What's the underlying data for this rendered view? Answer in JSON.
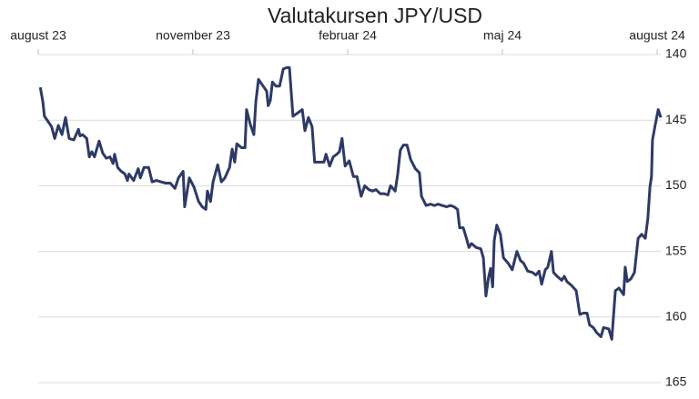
{
  "chart_data": {
    "type": "line",
    "title": "Valutakursen JPY/USD",
    "x": [
      0.04,
      0.09,
      0.12,
      0.19,
      0.26,
      0.32,
      0.39,
      0.46,
      0.53,
      0.6,
      0.69,
      0.78,
      0.81,
      0.86,
      0.94,
      0.99,
      1.04,
      1.09,
      1.18,
      1.25,
      1.32,
      1.39,
      1.45,
      1.48,
      1.54,
      1.61,
      1.68,
      1.73,
      1.76,
      1.85,
      1.91,
      1.94,
      1.98,
      2.05,
      2.14,
      2.21,
      2.29,
      2.38,
      2.47,
      2.56,
      2.65,
      2.72,
      2.81,
      2.84,
      2.93,
      3.02,
      3.11,
      3.18,
      3.25,
      3.28,
      3.34,
      3.39,
      3.48,
      3.55,
      3.62,
      3.71,
      3.76,
      3.81,
      3.85,
      3.94,
      4.01,
      4.04,
      4.11,
      4.18,
      4.22,
      4.27,
      4.36,
      4.43,
      4.46,
      4.5,
      4.54,
      4.61,
      4.68,
      4.75,
      4.82,
      4.87,
      4.94,
      5.05,
      5.12,
      5.17,
      5.24,
      5.31,
      5.36,
      5.45,
      5.54,
      5.58,
      5.65,
      5.72,
      5.79,
      5.84,
      5.89,
      5.95,
      6.03,
      6.11,
      6.18,
      6.26,
      6.33,
      6.41,
      6.48,
      6.55,
      6.63,
      6.71,
      6.78,
      6.83,
      6.92,
      6.97,
      7.02,
      7.08,
      7.15,
      7.22,
      7.31,
      7.39,
      7.43,
      7.52,
      7.61,
      7.68,
      7.75,
      7.83,
      7.92,
      7.99,
      8.06,
      8.13,
      8.17,
      8.24,
      8.31,
      8.35,
      8.4,
      8.49,
      8.58,
      8.63,
      8.68,
      8.73,
      8.77,
      8.81,
      8.84,
      8.89,
      8.96,
      9.02,
      9.11,
      9.19,
      9.28,
      9.35,
      9.41,
      9.49,
      9.58,
      9.65,
      9.71,
      9.76,
      9.83,
      9.88,
      9.95,
      9.99,
      10.06,
      10.15,
      10.2,
      10.25,
      10.34,
      10.43,
      10.5,
      10.57,
      10.64,
      10.69,
      10.76,
      10.83,
      10.91,
      10.96,
      11.06,
      11.12,
      11.19,
      11.26,
      11.35,
      11.38,
      11.42,
      11.49,
      11.56,
      11.63,
      11.7,
      11.77,
      11.82,
      11.86,
      11.89,
      11.91,
      11.96,
      12.02,
      12.07
    ],
    "series": [
      {
        "name": "JPY/USD",
        "color": "#2e3a66",
        "values": [
          142.5,
          143.6,
          144.7,
          145.1,
          145.5,
          146.4,
          145.4,
          146.1,
          144.8,
          146.4,
          146.5,
          145.7,
          146.2,
          146.1,
          146.4,
          147.8,
          147.4,
          147.8,
          146.6,
          147.5,
          147.9,
          147.8,
          148.3,
          147.6,
          148.6,
          148.9,
          149.1,
          149.6,
          149.1,
          149.6,
          149.0,
          148.7,
          149.4,
          148.6,
          148.6,
          149.7,
          149.6,
          149.7,
          149.8,
          149.8,
          150.2,
          149.4,
          148.9,
          151.6,
          149.4,
          150.1,
          151.2,
          151.6,
          151.8,
          150.4,
          151.2,
          149.7,
          148.4,
          149.7,
          149.4,
          148.6,
          147.2,
          148.2,
          146.8,
          147.1,
          147.1,
          144.2,
          145.3,
          146.1,
          143.6,
          141.9,
          142.4,
          142.8,
          143.9,
          143.5,
          142.1,
          142.4,
          142.4,
          141.1,
          141.0,
          141.0,
          144.7,
          144.4,
          144.2,
          145.8,
          144.8,
          145.5,
          148.2,
          148.2,
          148.2,
          147.6,
          148.5,
          147.8,
          147.6,
          147.4,
          146.4,
          148.5,
          148.1,
          149.3,
          149.3,
          150.8,
          150.0,
          150.3,
          150.4,
          150.3,
          150.6,
          150.6,
          150.7,
          150.0,
          150.4,
          149.1,
          147.3,
          146.9,
          146.9,
          148.0,
          148.7,
          149.0,
          150.8,
          151.5,
          151.4,
          151.5,
          151.4,
          151.5,
          151.6,
          151.5,
          151.6,
          151.8,
          153.2,
          153.2,
          154.1,
          154.7,
          154.4,
          154.7,
          154.8,
          155.5,
          158.4,
          157.0,
          156.3,
          157.7,
          154.2,
          153.0,
          153.7,
          155.5,
          155.9,
          156.4,
          155.0,
          155.7,
          155.9,
          156.5,
          156.6,
          156.8,
          156.5,
          157.5,
          156.4,
          156.2,
          155.0,
          156.6,
          156.9,
          157.2,
          156.9,
          157.3,
          157.6,
          158.0,
          159.8,
          159.7,
          159.7,
          160.6,
          160.8,
          161.2,
          161.5,
          160.8,
          160.9,
          161.7,
          158.0,
          157.8,
          158.3,
          156.2,
          157.3,
          157.1,
          156.6,
          154.0,
          153.7,
          154.0,
          152.5,
          150.1,
          149.3,
          146.5,
          145.4,
          144.2,
          144.8
        ]
      }
    ],
    "xlim": [
      0,
      12.07
    ],
    "xticks": [
      {
        "value": 0,
        "label": "august 23"
      },
      {
        "value": 3,
        "label": "november 23"
      },
      {
        "value": 6,
        "label": "februar 24"
      },
      {
        "value": 9,
        "label": "maj 24"
      },
      {
        "value": 12,
        "label": "august 24"
      }
    ],
    "ylim": [
      165,
      140
    ],
    "yticks": [
      140,
      145,
      150,
      155,
      160,
      165
    ],
    "grid": true
  }
}
